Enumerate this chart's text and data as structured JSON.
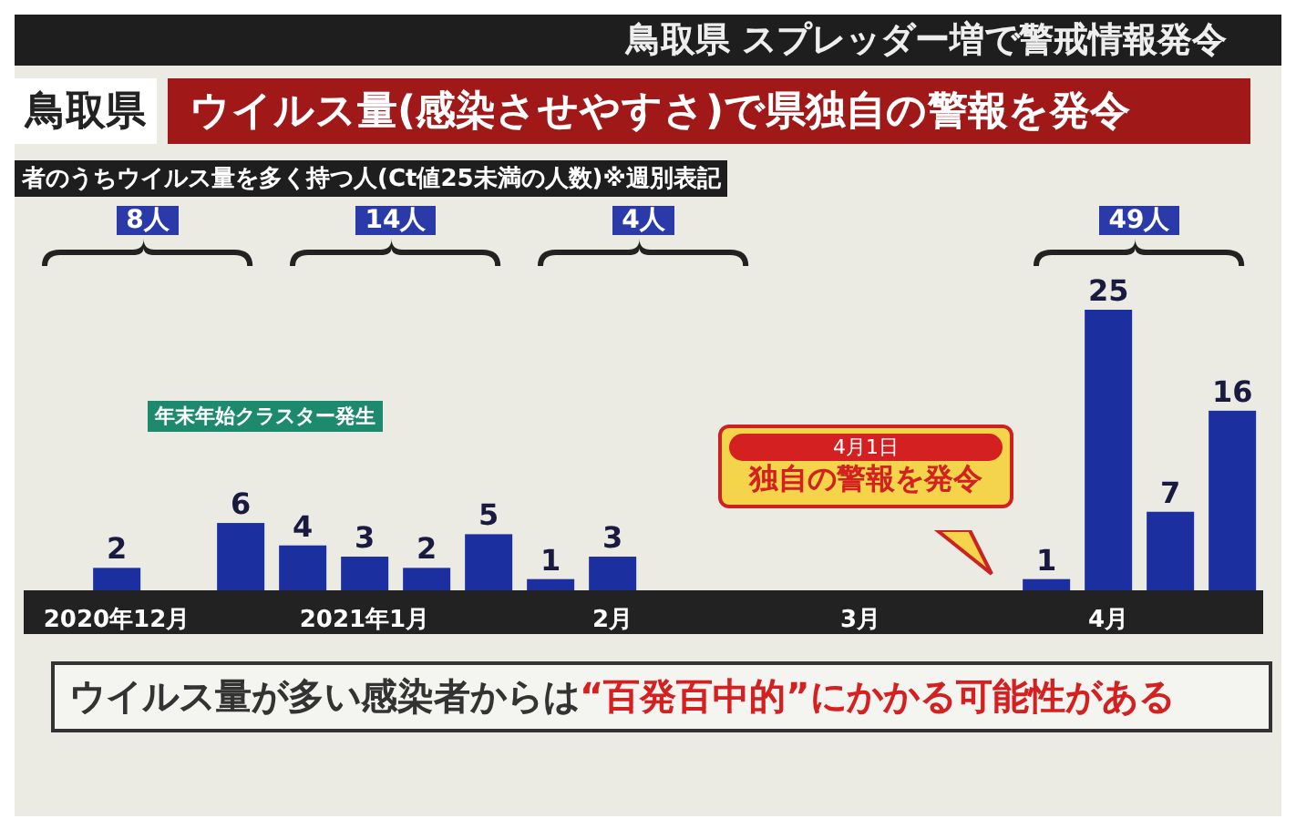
{
  "chart_data": {
    "type": "bar",
    "title": "ウイルス量(感染させやすさ)で県独自の警報を発令",
    "subtitle": "者のうちウイルス量を多く持つ人(Ct値25未満の人数)※週別表記",
    "categories": [
      null,
      "2020年12月",
      null,
      null,
      null,
      "2021年1月",
      null,
      null,
      null,
      "2月",
      null,
      null,
      null,
      "3月",
      null,
      null,
      null,
      "4月",
      null,
      null
    ],
    "values": [
      null,
      2,
      null,
      6,
      4,
      3,
      2,
      5,
      1,
      3,
      null,
      null,
      null,
      null,
      null,
      null,
      1,
      25,
      7,
      16
    ],
    "value_labels": [
      null,
      "2",
      null,
      "6",
      "4",
      "3",
      "2",
      "5",
      "1",
      "3",
      null,
      null,
      null,
      null,
      null,
      null,
      "1",
      "25",
      "7",
      "16"
    ],
    "color": "#1b2f9e",
    "grid": false,
    "legend": false,
    "annotations": [
      "鳥取県 スプレッダー増で警戒情報発令",
      "鳥取県",
      "8人",
      "14人",
      "4人",
      "49人",
      "年末年始クラスター発生",
      "4月1日",
      "独自の警報を発令",
      "ウイルス量が多い感染者からは",
      "“百発百中的”にかかる可能性がある"
    ]
  }
}
